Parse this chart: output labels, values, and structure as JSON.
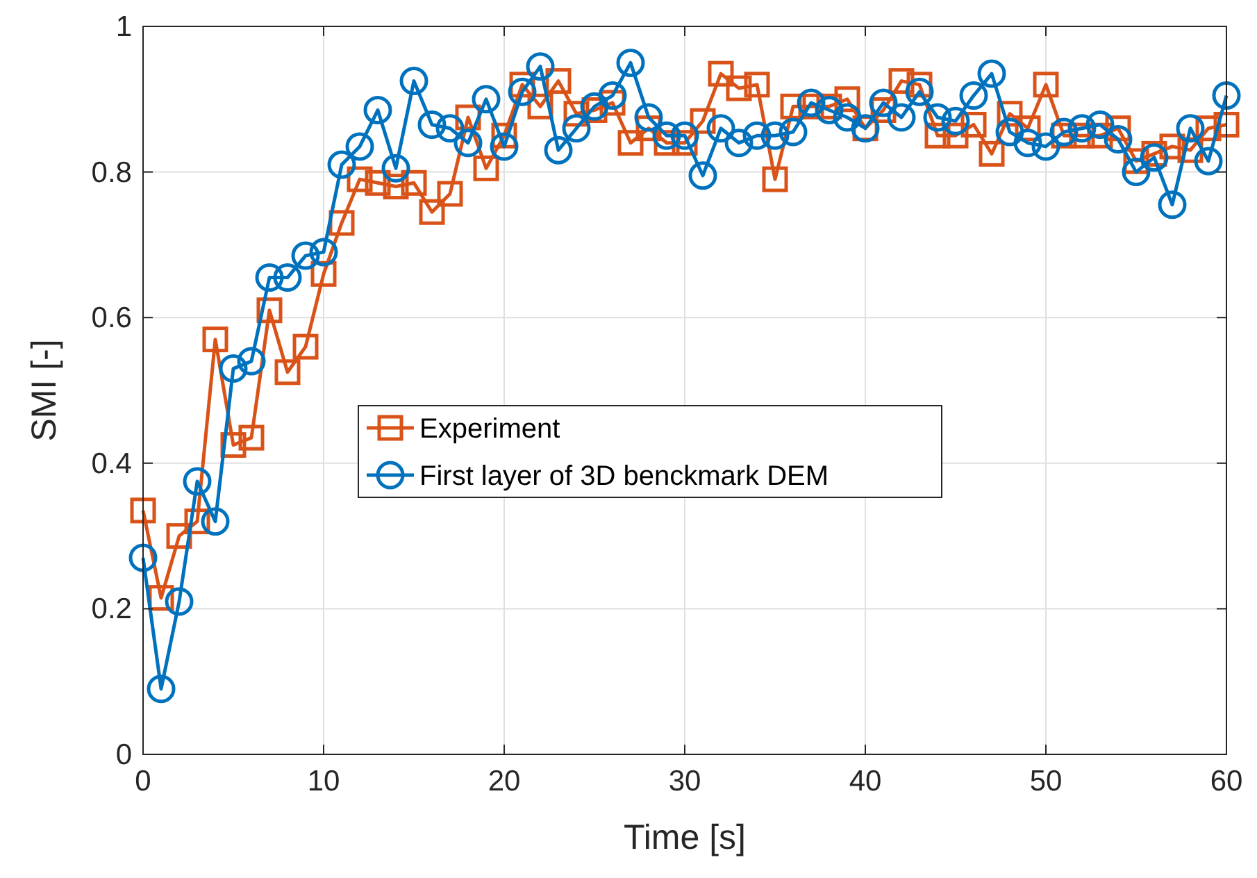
{
  "chart_data": {
    "type": "line",
    "xlabel": "Time [s]",
    "ylabel": "SMI [-]",
    "x": [
      0,
      1,
      2,
      3,
      4,
      5,
      6,
      7,
      8,
      9,
      10,
      11,
      12,
      13,
      14,
      15,
      16,
      17,
      18,
      19,
      20,
      21,
      22,
      23,
      24,
      25,
      26,
      27,
      28,
      29,
      30,
      31,
      32,
      33,
      34,
      35,
      36,
      37,
      38,
      39,
      40,
      41,
      42,
      43,
      44,
      45,
      46,
      47,
      48,
      49,
      50,
      51,
      52,
      53,
      54,
      55,
      56,
      57,
      58,
      59,
      60
    ],
    "series": [
      {
        "name": "Experiment",
        "color": "#d95319",
        "marker": "square",
        "values": [
          0.335,
          0.215,
          0.3,
          0.32,
          0.57,
          0.425,
          0.435,
          0.61,
          0.525,
          0.56,
          0.66,
          0.73,
          0.79,
          0.785,
          0.78,
          0.785,
          0.745,
          0.77,
          0.875,
          0.805,
          0.85,
          0.92,
          0.89,
          0.925,
          0.88,
          0.885,
          0.895,
          0.84,
          0.86,
          0.84,
          0.84,
          0.87,
          0.935,
          0.915,
          0.92,
          0.79,
          0.89,
          0.89,
          0.89,
          0.9,
          0.86,
          0.885,
          0.925,
          0.92,
          0.85,
          0.85,
          0.865,
          0.825,
          0.88,
          0.86,
          0.92,
          0.85,
          0.85,
          0.85,
          0.86,
          0.815,
          0.825,
          0.835,
          0.83,
          0.86,
          0.865
        ]
      },
      {
        "name": "First layer of 3D benckmark DEM",
        "color": "#0072bd",
        "marker": "circle",
        "values": [
          0.27,
          0.09,
          0.21,
          0.375,
          0.32,
          0.53,
          0.54,
          0.655,
          0.655,
          0.685,
          0.69,
          0.81,
          0.835,
          0.885,
          0.805,
          0.925,
          0.865,
          0.86,
          0.84,
          0.9,
          0.835,
          0.91,
          0.945,
          0.83,
          0.86,
          0.89,
          0.905,
          0.95,
          0.875,
          0.85,
          0.85,
          0.795,
          0.86,
          0.84,
          0.85,
          0.85,
          0.855,
          0.895,
          0.885,
          0.875,
          0.86,
          0.895,
          0.875,
          0.91,
          0.875,
          0.87,
          0.905,
          0.935,
          0.855,
          0.84,
          0.835,
          0.855,
          0.86,
          0.865,
          0.845,
          0.8,
          0.82,
          0.755,
          0.86,
          0.815,
          0.905
        ]
      }
    ],
    "xlim": [
      0,
      60
    ],
    "xticks": [
      0,
      10,
      20,
      30,
      40,
      50,
      60
    ],
    "ylim": [
      0,
      1
    ],
    "yticks": [
      0,
      0.2,
      0.4,
      0.6,
      0.8,
      1
    ],
    "grid": true,
    "legend": "center",
    "line_style": "solid"
  }
}
